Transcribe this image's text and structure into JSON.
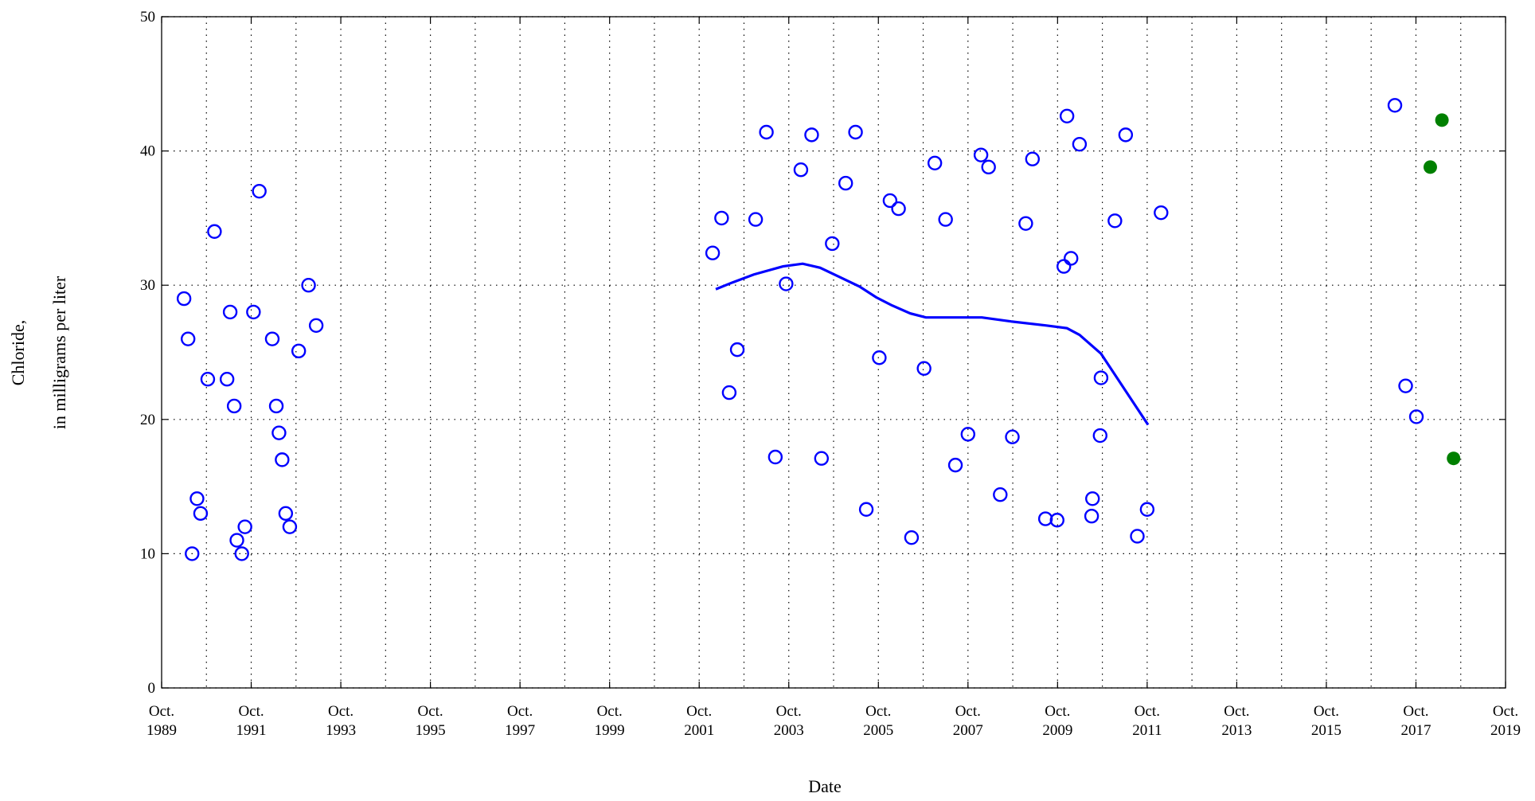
{
  "chart_data": {
    "type": "scatter",
    "xlabel": "Date",
    "ylabel": [
      "Chloride,",
      "in milligrams per liter"
    ],
    "xlim": [
      1989.75,
      2019.75
    ],
    "xticks": [
      {
        "value": 1989.75,
        "label": "Oct. 1989"
      },
      {
        "value": 1991.75,
        "label": "Oct. 1991"
      },
      {
        "value": 1993.75,
        "label": "Oct. 1993"
      },
      {
        "value": 1995.75,
        "label": "Oct. 1995"
      },
      {
        "value": 1997.75,
        "label": "Oct. 1997"
      },
      {
        "value": 1999.75,
        "label": "Oct. 1999"
      },
      {
        "value": 2001.75,
        "label": "Oct. 2001"
      },
      {
        "value": 2003.75,
        "label": "Oct. 2003"
      },
      {
        "value": 2005.75,
        "label": "Oct. 2005"
      },
      {
        "value": 2007.75,
        "label": "Oct. 2007"
      },
      {
        "value": 2009.75,
        "label": "Oct. 2009"
      },
      {
        "value": 2011.75,
        "label": "Oct. 2011"
      },
      {
        "value": 2013.75,
        "label": "Oct. 2013"
      },
      {
        "value": 2015.75,
        "label": "Oct. 2015"
      },
      {
        "value": 2017.75,
        "label": "Oct. 2017"
      },
      {
        "value": 2019.75,
        "label": "Oct. 2019"
      }
    ],
    "xgrid": [
      1990.75,
      1991.75,
      1992.75,
      1993.75,
      1994.75,
      1995.75,
      1996.75,
      1997.75,
      1998.75,
      1999.75,
      2000.75,
      2001.75,
      2002.75,
      2003.75,
      2004.75,
      2005.75,
      2006.75,
      2007.75,
      2008.75,
      2009.75,
      2010.75,
      2011.75,
      2012.75,
      2013.75,
      2014.75,
      2015.75,
      2016.75,
      2017.75,
      2018.75
    ],
    "ylim": [
      0,
      50
    ],
    "yticks": [
      0,
      10,
      20,
      30,
      40,
      50
    ],
    "grid": true,
    "series": [
      {
        "color": "#0000ff",
        "marker": "open",
        "x": [
          1990.25,
          1990.34,
          1990.43,
          1990.54,
          1990.62,
          1990.78,
          1990.93,
          1991.21,
          1991.28,
          1991.37,
          1991.43,
          1991.54,
          1991.61,
          1991.8,
          1991.93,
          1992.22,
          1992.31,
          1992.37,
          1992.44,
          1992.52,
          1992.61,
          1992.81,
          1993.03,
          1993.2,
          2002.05,
          2002.25,
          2002.42,
          2002.6,
          2003.01,
          2003.25,
          2003.45,
          2003.69,
          2004.02,
          2004.26,
          2004.48,
          2004.72,
          2005.02,
          2005.24,
          2005.48,
          2005.77,
          2006.01,
          2006.2,
          2006.49,
          2006.77,
          2007.01,
          2007.25,
          2007.47,
          2007.75,
          2008.04,
          2008.21,
          2008.47,
          2008.74,
          2009.04,
          2009.19,
          2009.48,
          2009.74,
          2009.89,
          2009.96,
          2010.05,
          2010.24,
          2010.51,
          2010.53,
          2010.7,
          2010.72,
          2011.03,
          2011.27,
          2011.53,
          2011.75,
          2012.06,
          2017.28,
          2017.52,
          2017.76
        ],
        "values": [
          29.0,
          26.0,
          10.0,
          14.1,
          13.0,
          23.0,
          34.0,
          23.0,
          28.0,
          21.0,
          11.0,
          10.0,
          12.0,
          28.0,
          37.0,
          26.0,
          21.0,
          19.0,
          17.0,
          13.0,
          12.0,
          25.1,
          30.0,
          27.0,
          32.4,
          35.0,
          22.0,
          25.2,
          34.9,
          41.4,
          17.2,
          30.1,
          38.6,
          41.2,
          17.1,
          33.1,
          37.6,
          41.4,
          13.3,
          24.6,
          36.3,
          35.7,
          11.2,
          23.8,
          39.1,
          34.9,
          16.6,
          18.9,
          39.7,
          38.8,
          14.4,
          18.7,
          34.6,
          39.4,
          12.6,
          12.5,
          31.4,
          42.6,
          32.0,
          40.5,
          12.8,
          14.1,
          18.8,
          23.1,
          34.8,
          41.2,
          11.3,
          13.3,
          35.4,
          43.4,
          22.5,
          20.2
        ]
      },
      {
        "color": "#0000ff",
        "marker": "line",
        "x": [
          2002.12,
          2002.49,
          2002.97,
          2003.62,
          2004.06,
          2004.45,
          2004.89,
          2005.33,
          2005.7,
          2006.05,
          2006.46,
          2006.81,
          2008.06,
          2008.71,
          2009.5,
          2009.96,
          2010.24,
          2010.72,
          2011.77
        ],
        "values": [
          29.7,
          30.2,
          30.8,
          31.4,
          31.6,
          31.3,
          30.6,
          29.9,
          29.1,
          28.5,
          27.9,
          27.6,
          27.6,
          27.3,
          27.0,
          26.8,
          26.3,
          24.9,
          19.6
        ]
      },
      {
        "color": "#008000",
        "marker": "filled",
        "x": [
          2018.07,
          2018.33,
          2018.59
        ],
        "values": [
          38.8,
          42.3,
          17.1
        ]
      }
    ]
  }
}
